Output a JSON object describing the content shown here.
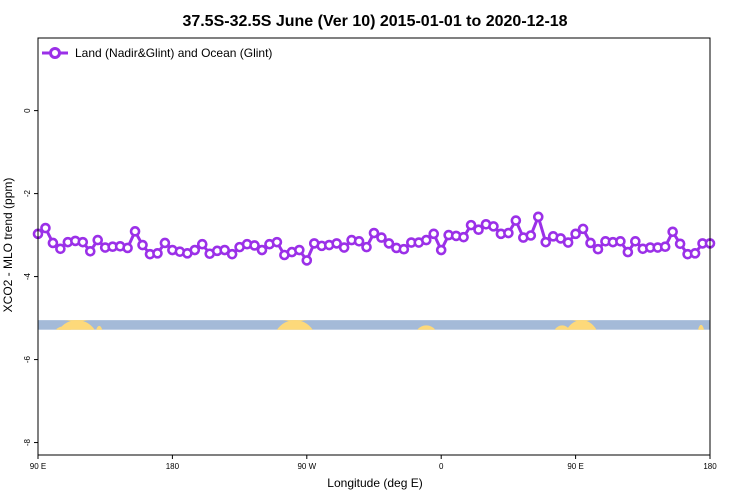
{
  "chart_data": {
    "type": "line",
    "title": "37.5S-32.5S June (Ver 10)   2015-01-01 to 2020-12-18",
    "xlabel": "Longitude (deg E)",
    "ylabel": "XCO2 - MLO trend (ppm)",
    "xlim": [
      90,
      540
    ],
    "ylim": [
      -8.3,
      1.75
    ],
    "x_ticks": [
      {
        "value": 90,
        "label": "90 E"
      },
      {
        "value": 180,
        "label": "180"
      },
      {
        "value": 270,
        "label": "90 W"
      },
      {
        "value": 360,
        "label": "0"
      },
      {
        "value": 450,
        "label": "90 E"
      },
      {
        "value": 540,
        "label": "180"
      }
    ],
    "y_ticks": [
      {
        "value": 0,
        "label": "0"
      },
      {
        "value": -2,
        "label": "-2"
      },
      {
        "value": -4,
        "label": "-4"
      },
      {
        "value": -6,
        "label": "-6"
      },
      {
        "value": -8,
        "label": "-8"
      }
    ],
    "legend": {
      "position": "top-left"
    },
    "series": [
      {
        "name": "Land (Nadir&Glint) and Ocean (Glint)",
        "color": "#9b30e8",
        "x": [
          90,
          95,
          100,
          105,
          110,
          115,
          120,
          125,
          130,
          135,
          140,
          145,
          150,
          155,
          160,
          165,
          170,
          175,
          180,
          185,
          190,
          195,
          200,
          205,
          210,
          215,
          220,
          225,
          230,
          235,
          240,
          245,
          250,
          255,
          260,
          265,
          270,
          275,
          280,
          285,
          290,
          295,
          300,
          305,
          310,
          315,
          320,
          325,
          330,
          335,
          340,
          345,
          350,
          355,
          360,
          365,
          370,
          375,
          380,
          385,
          390,
          395,
          400,
          405,
          410,
          415,
          420,
          425,
          430,
          435,
          440,
          445,
          450,
          455,
          460,
          465,
          470,
          475,
          480,
          485,
          490,
          495,
          500,
          505,
          510,
          515,
          520,
          525,
          530,
          535,
          540
        ],
        "y": [
          -2.97,
          -2.83,
          -3.19,
          -3.33,
          -3.17,
          -3.14,
          -3.17,
          -3.39,
          -3.12,
          -3.3,
          -3.28,
          -3.27,
          -3.31,
          -2.91,
          -3.24,
          -3.46,
          -3.44,
          -3.19,
          -3.36,
          -3.4,
          -3.44,
          -3.36,
          -3.22,
          -3.45,
          -3.38,
          -3.36,
          -3.46,
          -3.29,
          -3.22,
          -3.25,
          -3.36,
          -3.22,
          -3.17,
          -3.48,
          -3.41,
          -3.36,
          -3.61,
          -3.2,
          -3.26,
          -3.24,
          -3.2,
          -3.3,
          -3.12,
          -3.15,
          -3.29,
          -2.95,
          -3.06,
          -3.2,
          -3.31,
          -3.34,
          -3.18,
          -3.18,
          -3.12,
          -2.97,
          -3.36,
          -3.0,
          -3.02,
          -3.05,
          -2.76,
          -2.87,
          -2.74,
          -2.79,
          -2.97,
          -2.95,
          -2.65,
          -3.06,
          -3.01,
          -2.56,
          -3.17,
          -3.03,
          -3.08,
          -3.18,
          -2.97,
          -2.85,
          -3.19,
          -3.34,
          -3.15,
          -3.17,
          -3.15,
          -3.41,
          -3.15,
          -3.33,
          -3.3,
          -3.3,
          -3.28,
          -2.92,
          -3.21,
          -3.46,
          -3.44,
          -3.2,
          -3.2
        ]
      }
    ],
    "map_strip": {
      "ocean_color": "#a4bad8",
      "land_color": "#fdd97a",
      "y_top": -5.05,
      "y_bottom": -5.28
    }
  }
}
